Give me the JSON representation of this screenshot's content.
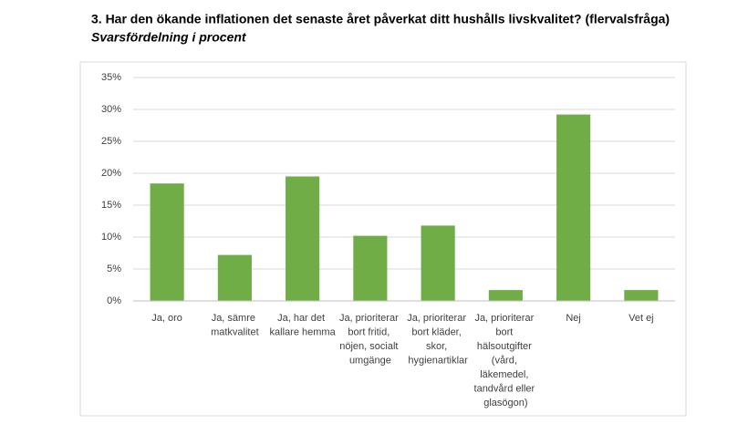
{
  "chart_data": {
    "type": "bar",
    "title": "3. Har den ökande inflationen det senaste året påverkat ditt hushålls livskvalitet? (flervalsfråga)",
    "subtitle": "Svarsfördelning i procent",
    "categories": [
      "Ja, oro",
      "Ja, sämre matkvalitet",
      "Ja, har det kallare hemma",
      "Ja, prioriterar bort fritid, nöjen, socialt umgänge",
      "Ja, prioriterar bort kläder, skor, hygienartiklar",
      "Ja, prioriterar bort hälsoutgifter (vård, läkemedel, tandvård eller glasögon)",
      "Nej",
      "Vet ej"
    ],
    "values": [
      18.4,
      7.2,
      19.5,
      10.2,
      11.8,
      1.7,
      29.2,
      1.7
    ],
    "color": "#70ad47",
    "ylim": [
      0,
      35
    ],
    "yticks": [
      {
        "value": 0,
        "label": "0%"
      },
      {
        "value": 5,
        "label": "5%"
      },
      {
        "value": 10,
        "label": "10%"
      },
      {
        "value": 15,
        "label": "15%"
      },
      {
        "value": 20,
        "label": "20%"
      },
      {
        "value": 25,
        "label": "25%"
      },
      {
        "value": 30,
        "label": "30%"
      },
      {
        "value": 35,
        "label": "35%"
      }
    ],
    "grid": true
  }
}
